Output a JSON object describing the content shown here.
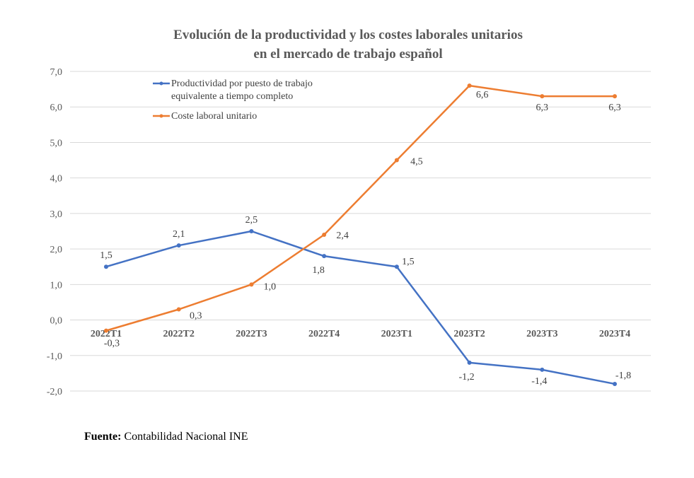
{
  "chart_data": {
    "type": "line",
    "title": [
      "Evolución de la productividad  y los costes laborales unitarios",
      "en el mercado de trabajo español"
    ],
    "categories": [
      "2022T1",
      "2022T2",
      "2022T3",
      "2022T4",
      "2023T1",
      "2023T2",
      "2023T3",
      "2023T4"
    ],
    "ylim": [
      -2.0,
      7.0
    ],
    "yticks": [
      7.0,
      6.0,
      5.0,
      4.0,
      3.0,
      2.0,
      1.0,
      0.0,
      -1.0,
      -2.0
    ],
    "ytick_labels": [
      "7,0",
      "6,0",
      "5,0",
      "4,0",
      "3,0",
      "2,0",
      "1,0",
      "0,0",
      "-1,0",
      "-2,0"
    ],
    "grid": true,
    "legend_position": "top-left",
    "xlabel": "",
    "ylabel": "",
    "series": [
      {
        "name": "Productividad por puesto de trabajo equivalente a tiempo completo",
        "legend_lines": [
          "Productividad por puesto de trabajo",
          "equivalente a tiempo completo"
        ],
        "color": "#4472C4",
        "values": [
          1.5,
          2.1,
          2.5,
          1.8,
          1.5,
          -1.2,
          -1.4,
          -1.8
        ],
        "labels": [
          "1,5",
          "2,1",
          "2,5",
          "1,8",
          "1,5",
          "-1,2",
          "-1,4",
          "-1,8"
        ]
      },
      {
        "name": "Coste laboral unitario",
        "legend_lines": [
          "Coste laboral unitario"
        ],
        "color": "#ED7D31",
        "values": [
          -0.3,
          0.3,
          1.0,
          2.4,
          4.5,
          6.6,
          6.3,
          6.3
        ],
        "labels": [
          "-0,3",
          "0,3",
          "1,0",
          "2,4",
          "4,5",
          "6,6",
          "6,3",
          "6,3"
        ]
      }
    ]
  },
  "source": {
    "label": "Fuente:",
    "text": " Contabilidad Nacional INE"
  }
}
